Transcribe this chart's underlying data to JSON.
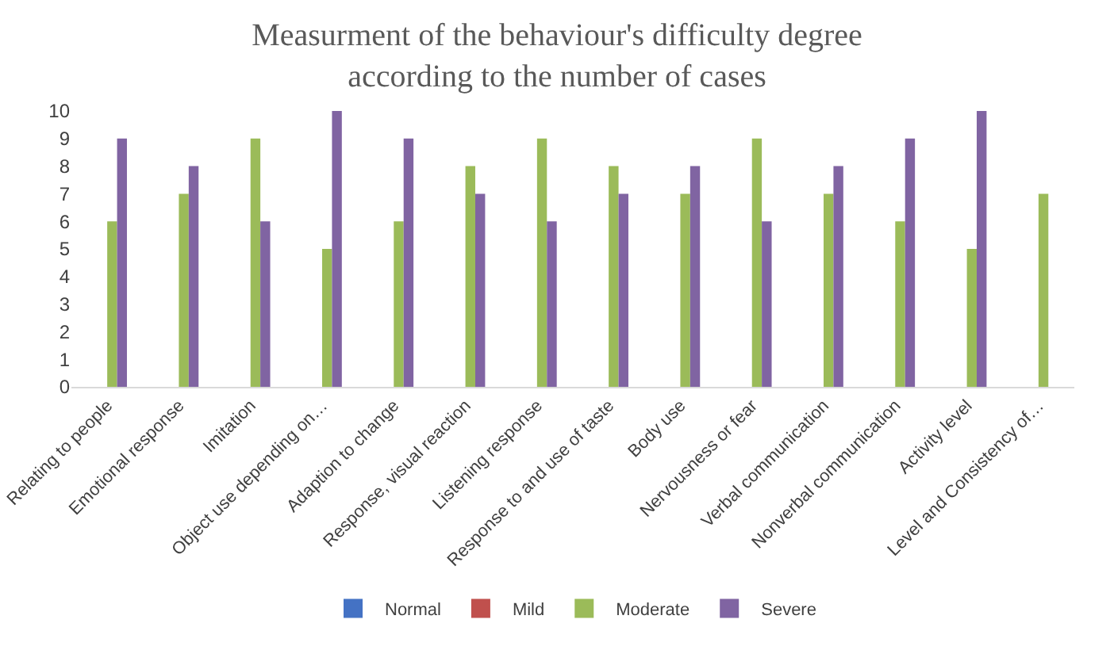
{
  "chart_data": {
    "type": "bar",
    "title": "Measurment of the behaviour's difficulty degree according to the number of cases",
    "categories": [
      "Relating to people",
      "Emotional response",
      "Imitation",
      "Object use depending on…",
      "Adaption to change",
      "Response, visual reaction",
      "Listening response",
      "Response to and use of taste",
      "Body use",
      "Nervousness or fear",
      "Verbal communication",
      "Nonverbal communication",
      "Activity level",
      "Level and Consistency of…"
    ],
    "series": [
      {
        "name": "Normal",
        "color": "#4472c4",
        "values": [
          0,
          0,
          0,
          0,
          0,
          0,
          0,
          0,
          0,
          0,
          0,
          0,
          0,
          0
        ]
      },
      {
        "name": "Mild",
        "color": "#c0504d",
        "values": [
          0,
          0,
          0,
          0,
          0,
          0,
          0,
          0,
          0,
          0,
          0,
          0,
          0,
          0
        ]
      },
      {
        "name": "Moderate",
        "color": "#9bbb59",
        "values": [
          6,
          7,
          9,
          5,
          6,
          8,
          9,
          8,
          7,
          9,
          7,
          6,
          5,
          7
        ]
      },
      {
        "name": "Severe",
        "color": "#8064a2",
        "values": [
          9,
          8,
          6,
          10,
          9,
          7,
          6,
          7,
          8,
          6,
          8,
          9,
          10,
          0
        ]
      }
    ],
    "ylim": [
      0,
      10
    ],
    "yticks": [
      0,
      1,
      2,
      3,
      4,
      5,
      6,
      7,
      8,
      9,
      10
    ],
    "grid": false,
    "legend": "bottom"
  }
}
